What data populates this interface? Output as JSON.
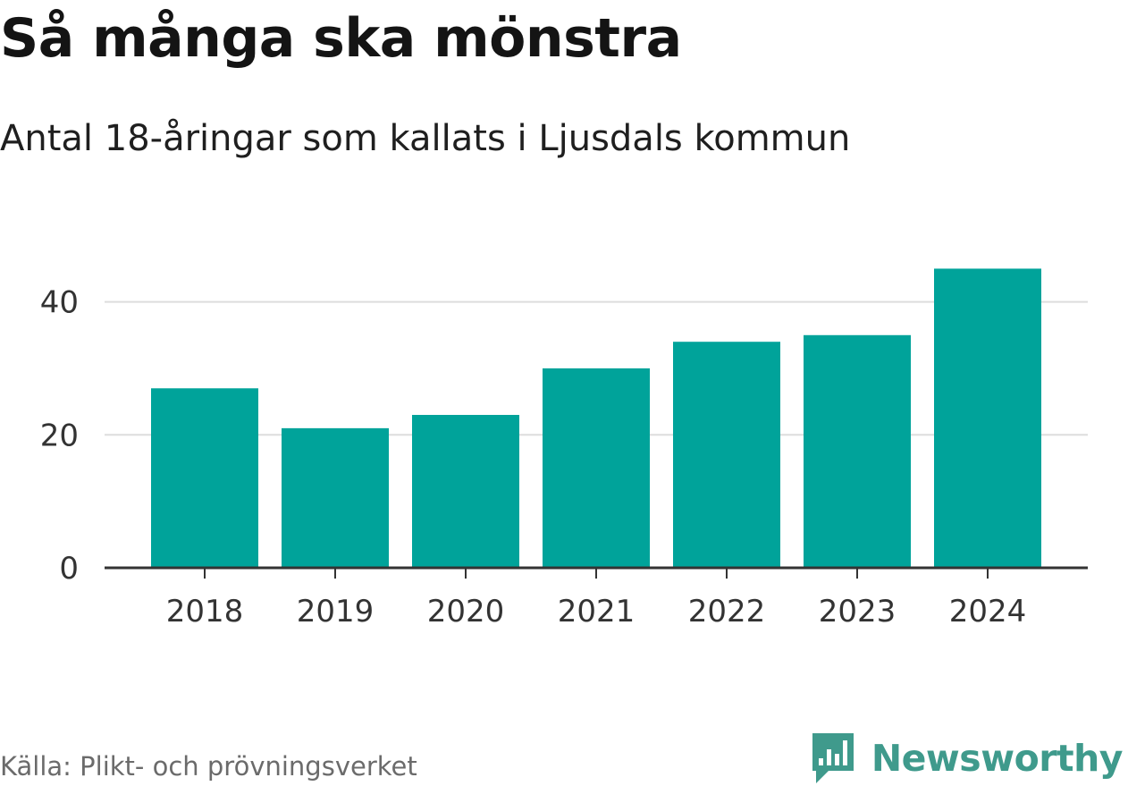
{
  "title": "Så många ska mönstra",
  "subtitle": "Antal 18-åringar som kallats i Ljusdals kommun",
  "source": "Källa: Plikt- och prövningsverket",
  "brand": {
    "name": "Newsworthy",
    "icon": "newsworthy-logo-icon",
    "color": "#3f9a8c"
  },
  "colors": {
    "bar": "#00a39a",
    "grid": "#dddddd",
    "axis": "#333333"
  },
  "chart_data": {
    "type": "bar",
    "title": "Så många ska mönstra",
    "subtitle": "Antal 18-åringar som kallats i Ljusdals kommun",
    "categories": [
      "2018",
      "2019",
      "2020",
      "2021",
      "2022",
      "2023",
      "2024"
    ],
    "values": [
      27,
      21,
      23,
      30,
      34,
      35,
      45
    ],
    "yticks": [
      "0",
      "20",
      "40"
    ],
    "ylim": [
      0,
      46
    ],
    "xlabel": "",
    "ylabel": "",
    "grid": true,
    "legend": "none"
  }
}
